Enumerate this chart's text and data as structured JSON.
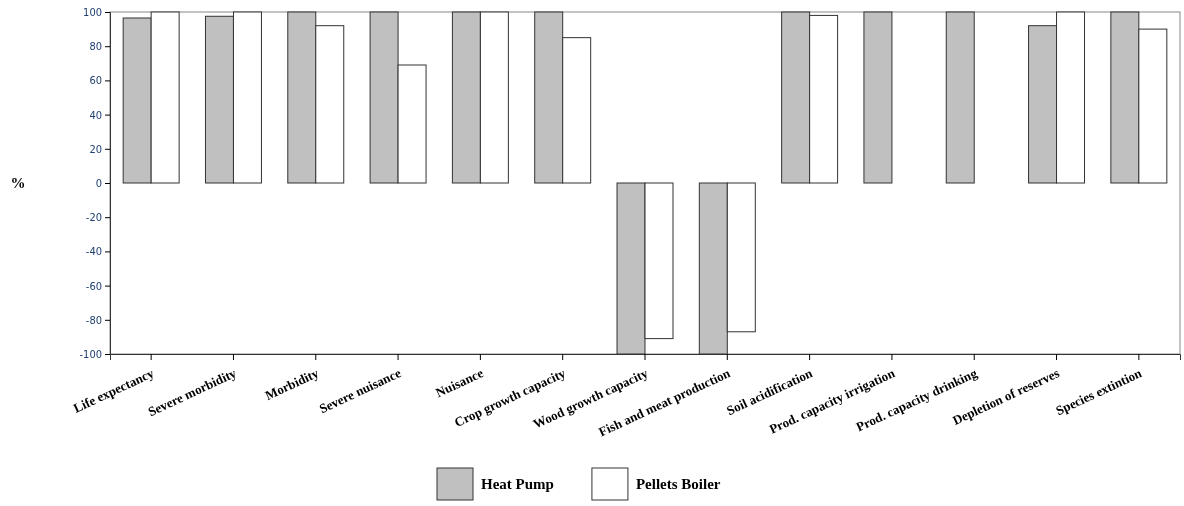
{
  "chart_data": {
    "type": "bar",
    "ylabel": "%",
    "categories": [
      "Life expectancy",
      "Severe morbidity",
      "Morbidity",
      "Severe nuisance",
      "Nuisance",
      "Crop growth capacity",
      "Wood growth capacity",
      "Fish and meat production",
      "Soil acidification",
      "Prod. capacity irrigation",
      "Prod. capacity drinking",
      "Depletion of reserves",
      "Species extintion"
    ],
    "series": [
      {
        "name": "Heat Pump",
        "color": "#c0c0c0",
        "values": [
          96.5,
          97.5,
          100,
          100,
          100,
          100,
          -100,
          -100,
          100,
          100,
          100,
          92,
          100
        ]
      },
      {
        "name": "Pellets Boiler",
        "color": "#ffffff",
        "values": [
          100,
          100,
          92,
          69,
          100,
          85,
          -91,
          -87,
          98,
          0,
          0,
          100,
          90
        ]
      }
    ],
    "ylim": [
      -100,
      100
    ],
    "yticks": [
      -100,
      -80,
      -60,
      -40,
      -20,
      0,
      20,
      40,
      60,
      80,
      100
    ],
    "grid": false,
    "legend": "bottom"
  }
}
